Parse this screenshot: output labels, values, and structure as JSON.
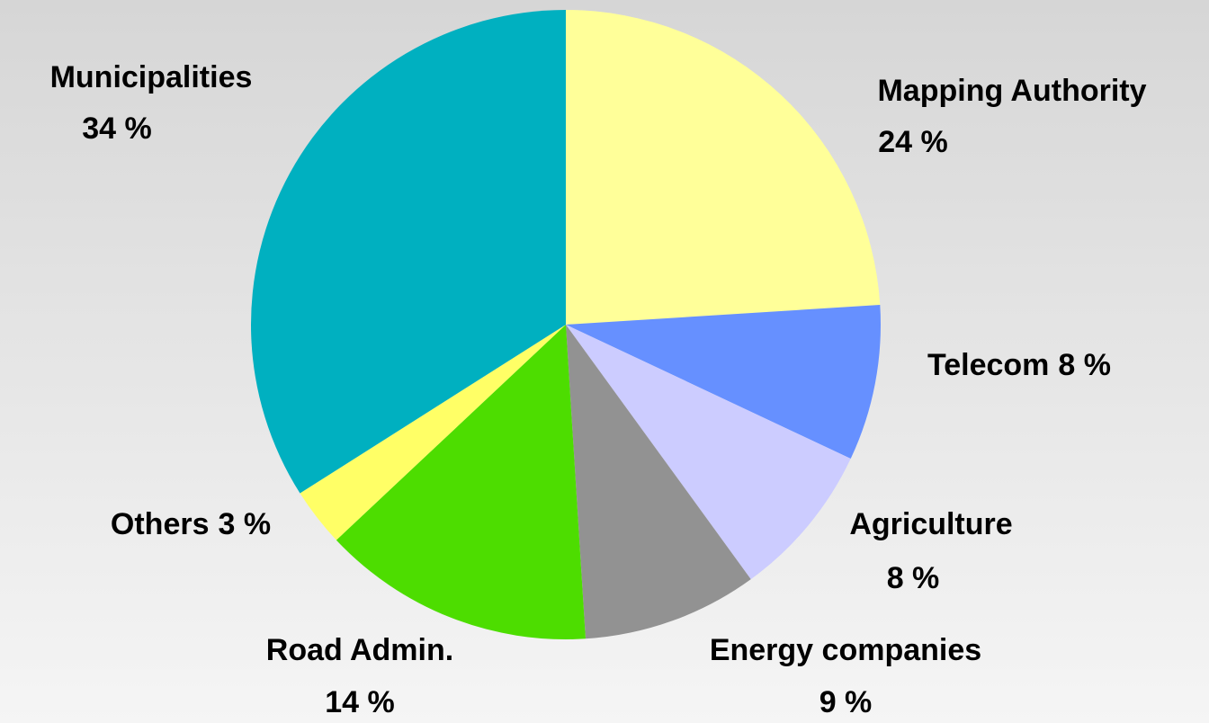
{
  "chart_data": {
    "type": "pie",
    "categories": [
      "Mapping Authority",
      "Telecom",
      "Agriculture",
      "Energy companies",
      "Road Admin.",
      "Others",
      "Municipalities"
    ],
    "values": [
      24,
      8,
      8,
      9,
      14,
      3,
      34
    ],
    "value_labels": [
      "24 %",
      "8 %",
      "8 %",
      "9 %",
      "14 %",
      "3 %",
      "34 %"
    ],
    "colors": [
      "#ffff99",
      "#6690ff",
      "#ccccff",
      "#929292",
      "#4ddd00",
      "#ffff66",
      "#00b0c0"
    ]
  }
}
